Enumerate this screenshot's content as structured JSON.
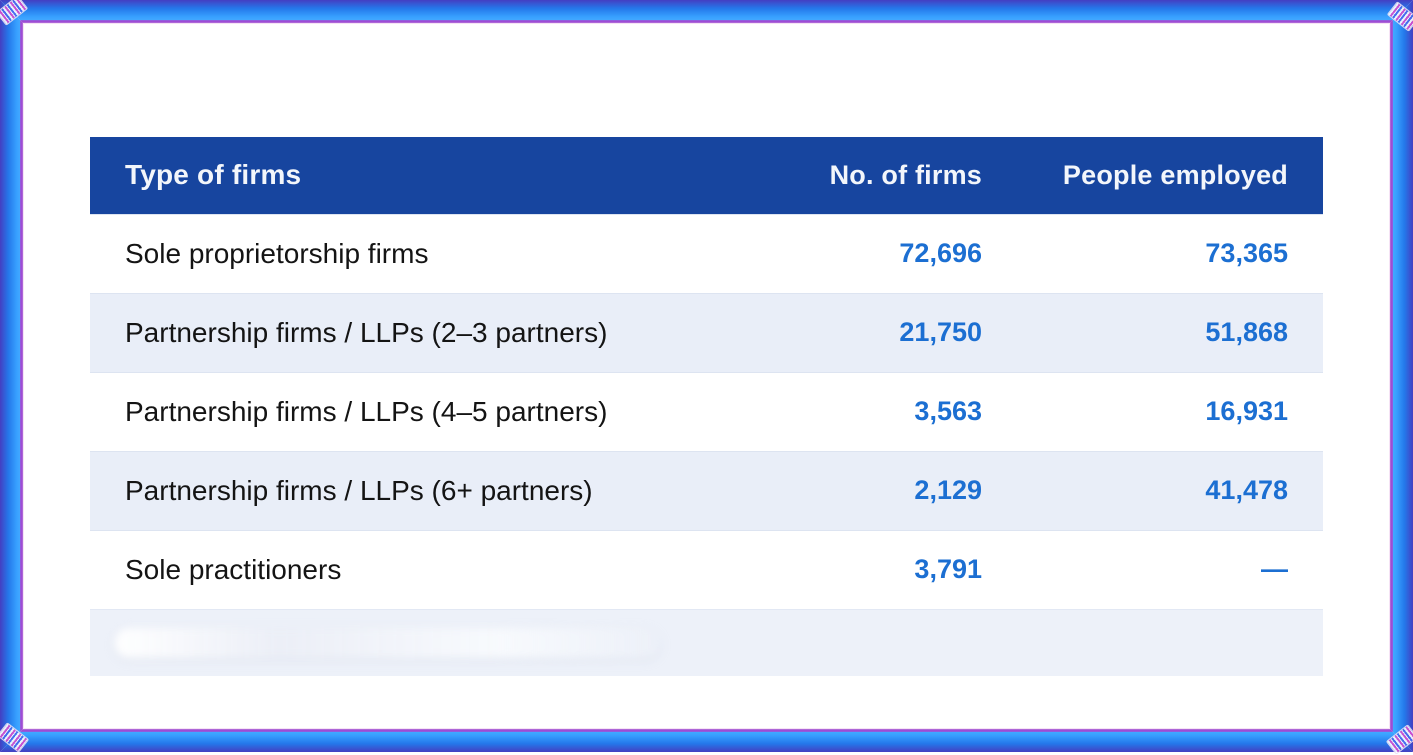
{
  "chart_data": {
    "type": "table",
    "title": "",
    "columns": [
      "Type of firms",
      "No. of firms",
      "People employed"
    ],
    "rows": [
      [
        "Sole proprietorship firms",
        "72,696",
        "73,365"
      ],
      [
        "Partnership firms / LLPs (2–3 partners)",
        "21,750",
        "51,868"
      ],
      [
        "Partnership firms / LLPs (4–5 partners)",
        "3,563",
        "16,931"
      ],
      [
        "Partnership firms / LLPs (6+ partners)",
        "2,129",
        "41,478"
      ],
      [
        "Sole practitioners",
        "3,791",
        "—"
      ]
    ],
    "last_row_blurred": true,
    "layout": {
      "header_position": "top",
      "zebra_striping": true,
      "value_columns_alignment": "right"
    }
  },
  "colors": {
    "header_bg": "#17459f",
    "header_text": "#f3f6fb",
    "row_bg": "#ffffff",
    "row_alt_bg": "#e9eef8",
    "label_text": "#141414",
    "number_text": "#1c6fd2",
    "frame_blue": "#38a0ff",
    "frame_purple": "#a04fd6"
  }
}
